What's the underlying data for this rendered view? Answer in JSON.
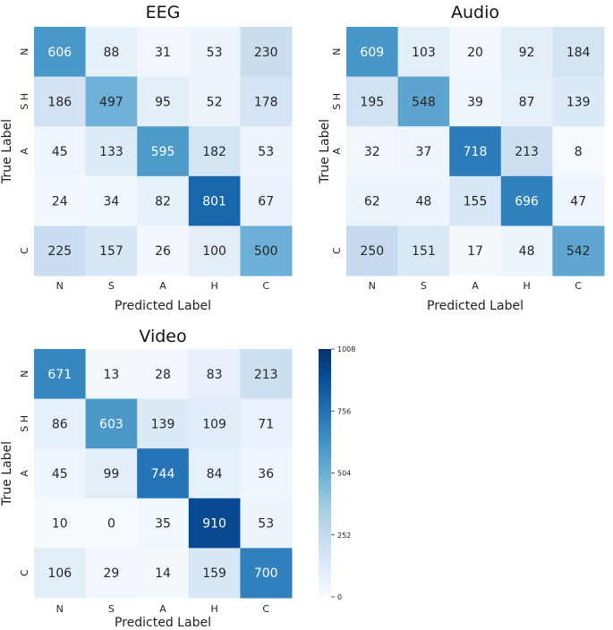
{
  "chart_data": [
    {
      "type": "heatmap",
      "title": "EEG",
      "xlabel": "Predicted Label",
      "ylabel": "True Label",
      "x_ticks": [
        "N",
        "S",
        "A",
        "H",
        "C"
      ],
      "y_ticks": [
        "N",
        "S H",
        "A",
        "",
        "C"
      ],
      "values": [
        [
          606,
          88,
          31,
          53,
          230
        ],
        [
          186,
          497,
          95,
          52,
          178
        ],
        [
          45,
          133,
          595,
          182,
          53
        ],
        [
          24,
          34,
          82,
          801,
          67
        ],
        [
          225,
          157,
          26,
          100,
          500
        ]
      ]
    },
    {
      "type": "heatmap",
      "title": "Audio",
      "xlabel": "Predicted Label",
      "ylabel": "True Label",
      "x_ticks": [
        "N",
        "S",
        "A",
        "H",
        "C"
      ],
      "y_ticks": [
        "N",
        "S H",
        "A",
        "",
        "C"
      ],
      "values": [
        [
          609,
          103,
          20,
          92,
          184
        ],
        [
          195,
          548,
          39,
          87,
          139
        ],
        [
          32,
          37,
          718,
          213,
          8
        ],
        [
          62,
          48,
          155,
          696,
          47
        ],
        [
          250,
          151,
          17,
          48,
          542
        ]
      ]
    },
    {
      "type": "heatmap",
      "title": "Video",
      "xlabel": "Predicted Label",
      "ylabel": "True Label",
      "x_ticks": [
        "N",
        "S",
        "A",
        "H",
        "C"
      ],
      "y_ticks": [
        "N",
        "S H",
        "A",
        "",
        "C"
      ],
      "values": [
        [
          671,
          13,
          28,
          83,
          213
        ],
        [
          86,
          603,
          139,
          109,
          71
        ],
        [
          45,
          99,
          744,
          84,
          36
        ],
        [
          10,
          0,
          35,
          910,
          53
        ],
        [
          106,
          29,
          14,
          159,
          700
        ]
      ]
    }
  ],
  "colorbar": {
    "min": 0,
    "max": 1008,
    "ticks": [
      "0",
      "252",
      "504",
      "756",
      "1008"
    ],
    "colormap": "Blues"
  }
}
